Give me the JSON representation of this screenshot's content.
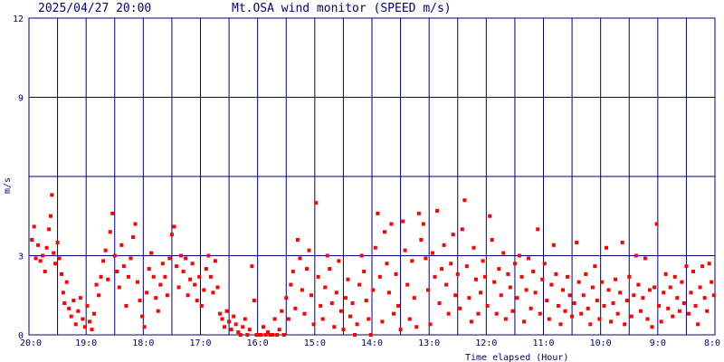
{
  "header": {
    "timestamp": "2025/04/27 20:00",
    "title": "Mt.OSA wind monitor (SPEED m/s)"
  },
  "chart_data": {
    "type": "scatter",
    "title": "Mt.OSA wind monitor (SPEED m/s)",
    "ylabel": "m/s",
    "xlabel": "Time elapsed (Hour)",
    "ylim": [
      0,
      12
    ],
    "y_ticks": [
      "0",
      "3",
      "9",
      "12"
    ],
    "y_tick_values": [
      0,
      3,
      9,
      12
    ],
    "y_grid_values": [
      0,
      3,
      6,
      9,
      12
    ],
    "x_range_hours": [
      0,
      12
    ],
    "x_ticks": [
      "20:0",
      "19:0",
      "18:0",
      "17:0",
      "16:0",
      "15:0",
      "14:0",
      "13:0",
      "12:0",
      "11:0",
      "10:0",
      "9:0",
      "8:0"
    ],
    "x_minor_grid_hours": 0.5,
    "grid": true,
    "series": [
      {
        "color": "#ff0000",
        "points": [
          [
            0.05,
            3.6
          ],
          [
            0.09,
            4.1
          ],
          [
            0.12,
            2.9
          ],
          [
            0.16,
            3.4
          ],
          [
            0.2,
            2.8
          ],
          [
            0.24,
            3.0
          ],
          [
            0.28,
            2.4
          ],
          [
            0.31,
            3.3
          ],
          [
            0.35,
            4.0
          ],
          [
            0.38,
            4.5
          ],
          [
            0.4,
            5.3
          ],
          [
            0.43,
            3.1
          ],
          [
            0.46,
            2.7
          ],
          [
            0.5,
            3.5
          ],
          [
            0.53,
            2.9
          ],
          [
            0.57,
            2.3
          ],
          [
            0.6,
            1.6
          ],
          [
            0.62,
            1.2
          ],
          [
            0.66,
            2.0
          ],
          [
            0.7,
            1.0
          ],
          [
            0.74,
            0.7
          ],
          [
            0.78,
            1.3
          ],
          [
            0.82,
            0.4
          ],
          [
            0.86,
            0.9
          ],
          [
            0.9,
            1.4
          ],
          [
            0.94,
            0.6
          ],
          [
            0.98,
            0.3
          ],
          [
            1.02,
            1.1
          ],
          [
            1.06,
            0.5
          ],
          [
            1.1,
            0.2
          ],
          [
            1.14,
            0.8
          ],
          [
            1.18,
            1.9
          ],
          [
            1.22,
            1.5
          ],
          [
            1.26,
            2.2
          ],
          [
            1.3,
            2.8
          ],
          [
            1.34,
            3.2
          ],
          [
            1.38,
            2.1
          ],
          [
            1.42,
            3.9
          ],
          [
            1.46,
            4.6
          ],
          [
            1.5,
            3.0
          ],
          [
            1.54,
            2.4
          ],
          [
            1.58,
            1.8
          ],
          [
            1.62,
            3.4
          ],
          [
            1.66,
            2.6
          ],
          [
            1.7,
            1.1
          ],
          [
            1.74,
            2.2
          ],
          [
            1.78,
            2.9
          ],
          [
            1.82,
            3.7
          ],
          [
            1.86,
            4.2
          ],
          [
            1.9,
            2.0
          ],
          [
            1.94,
            1.3
          ],
          [
            1.98,
            0.7
          ],
          [
            2.02,
            0.3
          ],
          [
            2.06,
            1.6
          ],
          [
            2.1,
            2.5
          ],
          [
            2.14,
            3.1
          ],
          [
            2.18,
            2.2
          ],
          [
            2.22,
            1.4
          ],
          [
            2.26,
            0.9
          ],
          [
            2.3,
            1.9
          ],
          [
            2.34,
            2.7
          ],
          [
            2.38,
            2.2
          ],
          [
            2.42,
            1.5
          ],
          [
            2.46,
            2.9
          ],
          [
            2.5,
            3.8
          ],
          [
            2.54,
            4.1
          ],
          [
            2.58,
            2.6
          ],
          [
            2.62,
            1.8
          ],
          [
            2.66,
            3.0
          ],
          [
            2.7,
            2.4
          ],
          [
            2.74,
            2.9
          ],
          [
            2.78,
            1.5
          ],
          [
            2.82,
            2.1
          ],
          [
            2.86,
            2.7
          ],
          [
            2.9,
            1.9
          ],
          [
            2.94,
            1.3
          ],
          [
            2.98,
            2.2
          ],
          [
            3.02,
            1.1
          ],
          [
            3.06,
            1.7
          ],
          [
            3.1,
            2.5
          ],
          [
            3.14,
            3.0
          ],
          [
            3.18,
            2.2
          ],
          [
            3.22,
            1.6
          ],
          [
            3.26,
            2.8
          ],
          [
            3.3,
            1.8
          ],
          [
            3.34,
            0.8
          ],
          [
            3.38,
            0.6
          ],
          [
            3.42,
            0.3
          ],
          [
            3.46,
            0.9
          ],
          [
            3.5,
            0.5
          ],
          [
            3.54,
            0.2
          ],
          [
            3.58,
            0.7
          ],
          [
            3.62,
            0.4
          ],
          [
            3.66,
            0.1
          ],
          [
            3.7,
            0.0
          ],
          [
            3.74,
            0.3
          ],
          [
            3.78,
            0.6
          ],
          [
            3.82,
            0.0
          ],
          [
            3.86,
            0.2
          ],
          [
            3.9,
            2.6
          ],
          [
            3.94,
            1.3
          ],
          [
            3.98,
            0.0
          ],
          [
            4.02,
            0.0
          ],
          [
            4.06,
            0.0
          ],
          [
            4.1,
            0.3
          ],
          [
            4.14,
            0.0
          ],
          [
            4.18,
            0.1
          ],
          [
            4.22,
            0.0
          ],
          [
            4.26,
            0.0
          ],
          [
            4.3,
            0.6
          ],
          [
            4.34,
            0.0
          ],
          [
            4.38,
            0.2
          ],
          [
            4.42,
            0.9
          ],
          [
            4.46,
            0.0
          ],
          [
            4.5,
            1.4
          ],
          [
            4.54,
            0.6
          ],
          [
            4.58,
            1.9
          ],
          [
            4.62,
            2.4
          ],
          [
            4.66,
            1.0
          ],
          [
            4.7,
            3.6
          ],
          [
            4.74,
            2.9
          ],
          [
            4.78,
            1.7
          ],
          [
            4.82,
            0.8
          ],
          [
            4.86,
            2.5
          ],
          [
            4.9,
            3.2
          ],
          [
            4.94,
            1.5
          ],
          [
            4.98,
            0.4
          ],
          [
            5.02,
            5.0
          ],
          [
            5.06,
            2.2
          ],
          [
            5.1,
            1.1
          ],
          [
            5.14,
            0.6
          ],
          [
            5.18,
            1.8
          ],
          [
            5.22,
            3.0
          ],
          [
            5.26,
            2.5
          ],
          [
            5.3,
            1.2
          ],
          [
            5.34,
            0.3
          ],
          [
            5.38,
            1.6
          ],
          [
            5.42,
            2.8
          ],
          [
            5.46,
            0.9
          ],
          [
            5.5,
            0.2
          ],
          [
            5.54,
            1.4
          ],
          [
            5.58,
            2.1
          ],
          [
            5.62,
            0.7
          ],
          [
            5.66,
            1.2
          ],
          [
            5.7,
            0.0
          ],
          [
            5.74,
            0.4
          ],
          [
            5.78,
            1.9
          ],
          [
            5.82,
            3.0
          ],
          [
            5.86,
            2.4
          ],
          [
            5.9,
            1.3
          ],
          [
            5.94,
            0.6
          ],
          [
            5.98,
            0.0
          ],
          [
            6.02,
            1.7
          ],
          [
            6.06,
            3.3
          ],
          [
            6.1,
            4.6
          ],
          [
            6.14,
            2.2
          ],
          [
            6.18,
            0.5
          ],
          [
            6.22,
            3.9
          ],
          [
            6.26,
            2.7
          ],
          [
            6.3,
            1.6
          ],
          [
            6.34,
            4.2
          ],
          [
            6.38,
            0.8
          ],
          [
            6.42,
            2.3
          ],
          [
            6.46,
            1.1
          ],
          [
            6.5,
            0.2
          ],
          [
            6.54,
            4.3
          ],
          [
            6.58,
            3.2
          ],
          [
            6.62,
            1.9
          ],
          [
            6.66,
            0.6
          ],
          [
            6.7,
            2.8
          ],
          [
            6.74,
            1.4
          ],
          [
            6.78,
            0.3
          ],
          [
            6.82,
            4.6
          ],
          [
            6.86,
            3.6
          ],
          [
            6.9,
            4.2
          ],
          [
            6.94,
            2.9
          ],
          [
            6.98,
            1.7
          ],
          [
            7.02,
            0.4
          ],
          [
            7.06,
            3.1
          ],
          [
            7.1,
            2.2
          ],
          [
            7.14,
            4.7
          ],
          [
            7.18,
            1.2
          ],
          [
            7.22,
            2.5
          ],
          [
            7.26,
            3.4
          ],
          [
            7.3,
            1.9
          ],
          [
            7.34,
            0.8
          ],
          [
            7.38,
            2.7
          ],
          [
            7.42,
            3.8
          ],
          [
            7.46,
            1.5
          ],
          [
            7.5,
            2.3
          ],
          [
            7.54,
            1.0
          ],
          [
            7.58,
            4.0
          ],
          [
            7.62,
            5.1
          ],
          [
            7.66,
            2.6
          ],
          [
            7.7,
            1.4
          ],
          [
            7.74,
            0.5
          ],
          [
            7.78,
            3.3
          ],
          [
            7.82,
            2.1
          ],
          [
            7.86,
            0.8
          ],
          [
            7.9,
            1.6
          ],
          [
            7.94,
            2.8
          ],
          [
            7.98,
            2.2
          ],
          [
            8.02,
            1.1
          ],
          [
            8.06,
            4.5
          ],
          [
            8.1,
            3.6
          ],
          [
            8.14,
            2.0
          ],
          [
            8.18,
            0.8
          ],
          [
            8.22,
            2.5
          ],
          [
            8.26,
            1.5
          ],
          [
            8.3,
            3.1
          ],
          [
            8.34,
            0.6
          ],
          [
            8.38,
            2.3
          ],
          [
            8.42,
            1.8
          ],
          [
            8.46,
            0.9
          ],
          [
            8.5,
            2.7
          ],
          [
            8.54,
            1.4
          ],
          [
            8.58,
            3.0
          ],
          [
            8.62,
            2.2
          ],
          [
            8.66,
            0.5
          ],
          [
            8.7,
            1.7
          ],
          [
            8.74,
            2.9
          ],
          [
            8.78,
            1.0
          ],
          [
            8.82,
            2.4
          ],
          [
            8.86,
            1.6
          ],
          [
            8.9,
            4.0
          ],
          [
            8.94,
            0.8
          ],
          [
            8.98,
            2.1
          ],
          [
            9.02,
            2.7
          ],
          [
            9.06,
            1.3
          ],
          [
            9.1,
            0.6
          ],
          [
            9.14,
            1.9
          ],
          [
            9.18,
            3.4
          ],
          [
            9.22,
            2.3
          ],
          [
            9.26,
            1.1
          ],
          [
            9.3,
            0.4
          ],
          [
            9.34,
            1.7
          ],
          [
            9.38,
            0.9
          ],
          [
            9.42,
            2.2
          ],
          [
            9.46,
            1.5
          ],
          [
            9.5,
            0.7
          ],
          [
            9.54,
            1.2
          ],
          [
            9.58,
            3.5
          ],
          [
            9.62,
            2.0
          ],
          [
            9.66,
            0.8
          ],
          [
            9.7,
            1.5
          ],
          [
            9.74,
            2.3
          ],
          [
            9.78,
            1.0
          ],
          [
            9.82,
            0.4
          ],
          [
            9.86,
            1.8
          ],
          [
            9.9,
            2.6
          ],
          [
            9.94,
            1.3
          ],
          [
            9.98,
            0.6
          ],
          [
            10.02,
            2.0
          ],
          [
            10.06,
            1.1
          ],
          [
            10.1,
            3.3
          ],
          [
            10.14,
            1.7
          ],
          [
            10.18,
            0.5
          ],
          [
            10.22,
            1.2
          ],
          [
            10.26,
            2.1
          ],
          [
            10.3,
            0.8
          ],
          [
            10.34,
            1.6
          ],
          [
            10.38,
            3.5
          ],
          [
            10.42,
            0.4
          ],
          [
            10.46,
            1.3
          ],
          [
            10.5,
            2.2
          ],
          [
            10.54,
            0.7
          ],
          [
            10.58,
            1.5
          ],
          [
            10.62,
            3.0
          ],
          [
            10.66,
            1.9
          ],
          [
            10.7,
            0.9
          ],
          [
            10.74,
            1.4
          ],
          [
            10.78,
            2.9
          ],
          [
            10.82,
            0.6
          ],
          [
            10.86,
            1.7
          ],
          [
            10.9,
            0.3
          ],
          [
            10.94,
            1.8
          ],
          [
            10.98,
            4.2
          ],
          [
            11.02,
            1.1
          ],
          [
            11.06,
            0.5
          ],
          [
            11.1,
            1.6
          ],
          [
            11.14,
            2.3
          ],
          [
            11.18,
            1.0
          ],
          [
            11.22,
            1.8
          ],
          [
            11.26,
            0.7
          ],
          [
            11.3,
            2.2
          ],
          [
            11.34,
            1.4
          ],
          [
            11.38,
            0.9
          ],
          [
            11.42,
            2.0
          ],
          [
            11.46,
            1.2
          ],
          [
            11.5,
            2.6
          ],
          [
            11.54,
            0.8
          ],
          [
            11.58,
            1.6
          ],
          [
            11.62,
            2.4
          ],
          [
            11.66,
            1.1
          ],
          [
            11.7,
            0.4
          ],
          [
            11.74,
            1.8
          ],
          [
            11.78,
            2.6
          ],
          [
            11.82,
            1.4
          ],
          [
            11.86,
            0.9
          ],
          [
            11.9,
            2.7
          ],
          [
            11.94,
            2.0
          ],
          [
            11.98,
            1.5
          ]
        ]
      }
    ]
  }
}
